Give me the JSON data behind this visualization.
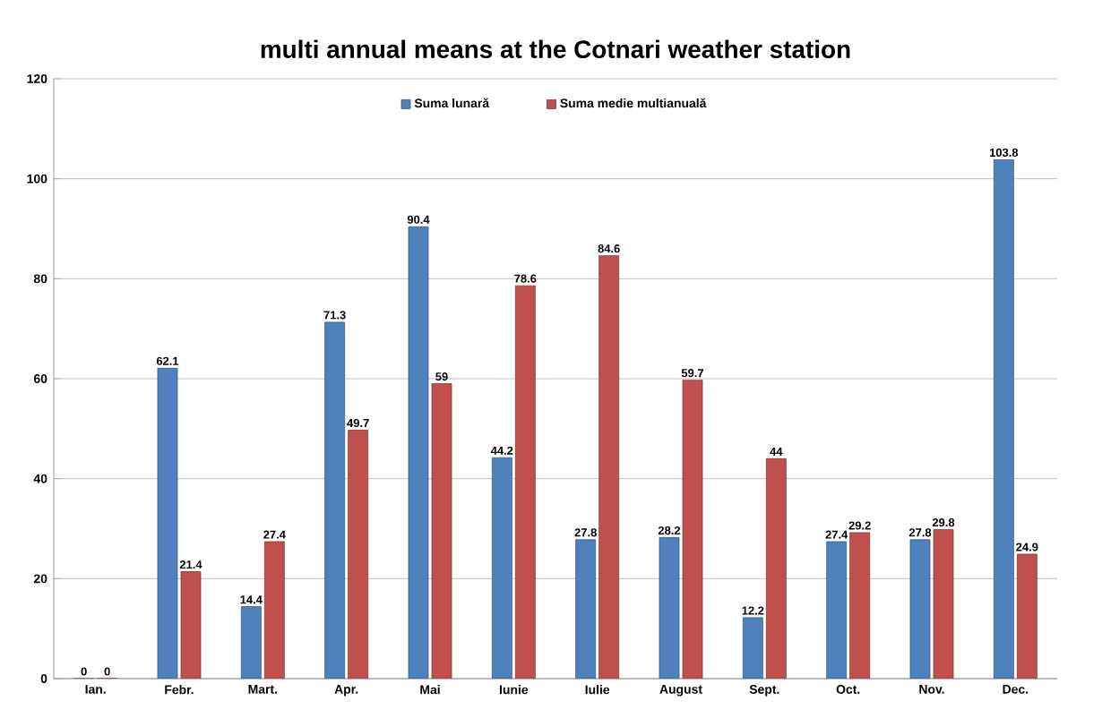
{
  "chart_data": {
    "type": "bar",
    "title": "multi annual means at the Cotnari weather station",
    "categories": [
      "Ian.",
      "Febr.",
      "Mart.",
      "Apr.",
      "Mai",
      "Iunie",
      "Iulie",
      "August",
      "Sept.",
      "Oct.",
      "Nov.",
      "Dec."
    ],
    "series": [
      {
        "name": "Suma lunară",
        "color": "#4f81bd",
        "values": [
          0,
          62.1,
          14.4,
          71.3,
          90.4,
          44.2,
          27.8,
          28.2,
          12.2,
          27.4,
          27.8,
          103.8
        ]
      },
      {
        "name": "Suma medie multianuală",
        "color": "#c0504d",
        "values": [
          0,
          21.4,
          27.4,
          49.7,
          59,
          78.6,
          84.6,
          59.7,
          44,
          29.2,
          29.8,
          24.9
        ]
      }
    ],
    "ylim": [
      0,
      120
    ],
    "yticks": [
      0,
      20,
      40,
      60,
      80,
      100,
      120
    ],
    "grid": "y",
    "legend": "top",
    "data_labels": true
  }
}
